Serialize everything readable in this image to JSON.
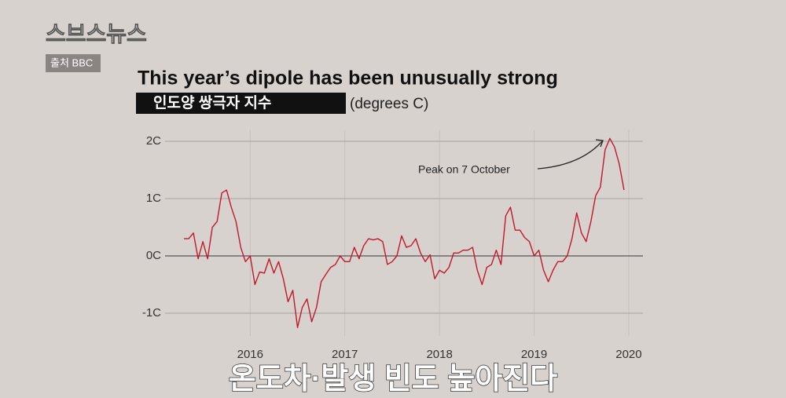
{
  "overlay": {
    "logo": "스브스뉴스",
    "source": "출처 BBC",
    "caption": "온도차·발생 빈도 높아진다"
  },
  "chart_data": {
    "type": "line",
    "title": "This year’s dipole has been unusually strong",
    "subtitle": "인도양 쌍극자 지수",
    "y_label": "(degrees C)",
    "annotations": [
      {
        "text": "Peak on 7 October"
      }
    ],
    "x": [
      2015.3,
      2015.35,
      2015.4,
      2015.45,
      2015.5,
      2015.55,
      2015.6,
      2015.65,
      2015.7,
      2015.75,
      2015.8,
      2015.85,
      2015.9,
      2015.95,
      2016.0,
      2016.05,
      2016.1,
      2016.15,
      2016.2,
      2016.25,
      2016.3,
      2016.35,
      2016.4,
      2016.45,
      2016.5,
      2016.55,
      2016.6,
      2016.65,
      2016.7,
      2016.75,
      2016.8,
      2016.85,
      2016.9,
      2016.95,
      2017.0,
      2017.05,
      2017.1,
      2017.15,
      2017.2,
      2017.25,
      2017.3,
      2017.35,
      2017.4,
      2017.45,
      2017.5,
      2017.55,
      2017.6,
      2017.65,
      2017.7,
      2017.75,
      2017.8,
      2017.85,
      2017.9,
      2017.95,
      2018.0,
      2018.05,
      2018.1,
      2018.15,
      2018.2,
      2018.25,
      2018.3,
      2018.35,
      2018.4,
      2018.45,
      2018.5,
      2018.55,
      2018.6,
      2018.65,
      2018.7,
      2018.75,
      2018.8,
      2018.85,
      2018.9,
      2018.95,
      2019.0,
      2019.05,
      2019.1,
      2019.15,
      2019.2,
      2019.25,
      2019.3,
      2019.35,
      2019.4,
      2019.45,
      2019.5,
      2019.55,
      2019.6,
      2019.65,
      2019.7,
      2019.75,
      2019.8,
      2019.85,
      2019.9,
      2019.95
    ],
    "series": [
      {
        "name": "Indian Ocean Dipole",
        "color": "#c0192c",
        "values": [
          0.3,
          0.3,
          0.4,
          -0.05,
          0.25,
          -0.05,
          0.5,
          0.6,
          1.1,
          1.15,
          0.85,
          0.6,
          0.15,
          -0.1,
          0.0,
          -0.5,
          -0.28,
          -0.3,
          -0.05,
          -0.3,
          -0.1,
          -0.4,
          -0.8,
          -0.6,
          -1.25,
          -0.9,
          -0.75,
          -1.15,
          -0.9,
          -0.45,
          -0.32,
          -0.2,
          -0.15,
          0.0,
          -0.1,
          -0.1,
          0.15,
          -0.05,
          0.18,
          0.3,
          0.28,
          0.3,
          0.25,
          -0.15,
          -0.1,
          0.0,
          0.35,
          0.15,
          0.18,
          0.3,
          0.05,
          -0.1,
          0.02,
          -0.4,
          -0.25,
          -0.3,
          -0.2,
          0.05,
          0.05,
          0.1,
          0.1,
          0.15,
          -0.25,
          -0.5,
          -0.2,
          -0.15,
          0.1,
          -0.15,
          0.7,
          0.85,
          0.45,
          0.45,
          0.32,
          0.25,
          0.0,
          0.1,
          -0.25,
          -0.45,
          -0.25,
          -0.1,
          -0.1,
          0.0,
          0.3,
          0.75,
          0.4,
          0.25,
          0.6,
          1.05,
          1.2,
          1.85,
          2.05,
          1.9,
          1.6,
          1.15
        ]
      }
    ],
    "xlim": [
      2015.2,
      2020.15
    ],
    "xticks": [
      2016,
      2017,
      2018,
      2019,
      2020
    ],
    "ylim": [
      -1.4,
      2.2
    ],
    "yticks": [
      {
        "value": -1,
        "label": "-1C"
      },
      {
        "value": 0,
        "label": "0C"
      },
      {
        "value": 1,
        "label": "1C"
      },
      {
        "value": 2,
        "label": "2C"
      }
    ],
    "grid": true
  }
}
